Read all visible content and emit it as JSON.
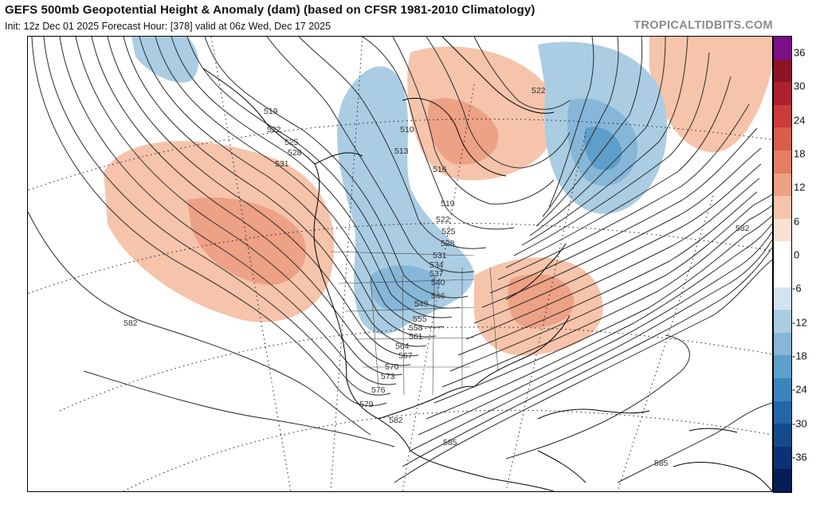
{
  "header": {
    "title": "GEFS 500mb Geopotential Height & Anomaly (dam) (based on CFSR 1981-2010 Climatology)",
    "subtitle": "Init: 12z Dec 01 2025   Forecast Hour: [378]   valid at 06z Wed, Dec 17 2025",
    "brand": "TROPICALTIDBITS.COM"
  },
  "map": {
    "contour_labels": [
      "519",
      "522",
      "525",
      "528",
      "531",
      "510",
      "513",
      "516",
      "519",
      "522",
      "525",
      "528",
      "531",
      "534",
      "537",
      "540",
      "546",
      "549",
      "555",
      "558",
      "561",
      "564",
      "567",
      "570",
      "573",
      "576",
      "579",
      "582",
      "582",
      "582",
      "585",
      "585",
      "522"
    ]
  },
  "colorbar": {
    "ticks": [
      "36",
      "30",
      "24",
      "18",
      "12",
      "6",
      "0",
      "-6",
      "-12",
      "-18",
      "-24",
      "-30",
      "-36"
    ],
    "colors": [
      "#7a0f86",
      "#8e1425",
      "#b01f2e",
      "#cc3a3a",
      "#da5d4c",
      "#e47e66",
      "#eda185",
      "#f6c4ab",
      "#fbe1d3",
      "#ffffff",
      "#ffffff",
      "#d2e4f0",
      "#aacde3",
      "#86b7d8",
      "#5e9ecb",
      "#3b84bd",
      "#2366a8",
      "#144b8e",
      "#0b3274",
      "#061d57"
    ]
  },
  "colors": {
    "warm_anomaly": "#f3b396",
    "cold_anomaly": "#8fbfde",
    "contour": "#2b2b2b"
  }
}
